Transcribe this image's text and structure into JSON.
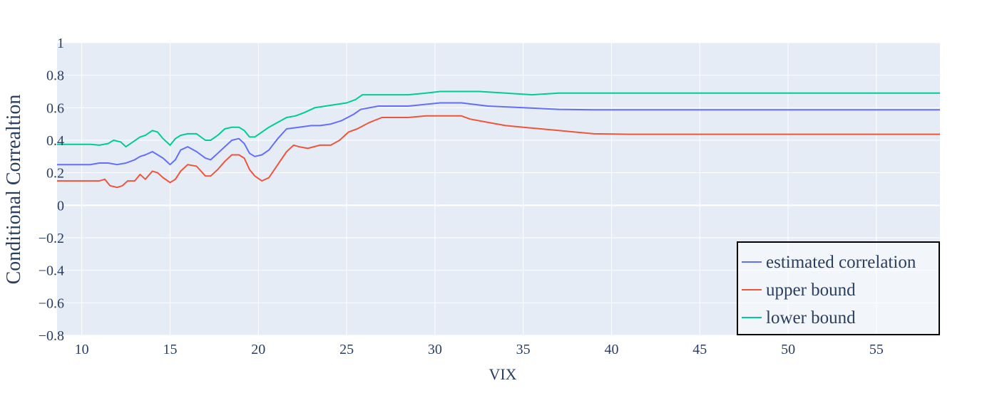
{
  "chart_data": {
    "type": "line",
    "xlabel": "VIX",
    "ylabel": "Conditional Correaltion",
    "xlim": [
      8.6,
      58.6
    ],
    "ylim": [
      -0.8,
      1.0
    ],
    "xticks": [
      10,
      15,
      20,
      25,
      30,
      35,
      40,
      45,
      50,
      55
    ],
    "yticks": [
      -0.8,
      -0.6,
      -0.4,
      -0.2,
      0,
      0.2,
      0.4,
      0.6,
      0.8,
      1
    ],
    "ytick_labels": [
      "−0.8",
      "−0.6",
      "−0.4",
      "−0.2",
      "0",
      "0.2",
      "0.4",
      "0.6",
      "0.8",
      "1"
    ],
    "xtick_labels": [
      "10",
      "15",
      "20",
      "25",
      "30",
      "35",
      "40",
      "45",
      "50",
      "55"
    ],
    "grid": true,
    "legend_position": "bottom-right",
    "colors": {
      "estimated correlation": "#636efa",
      "upper bound": "#EF553B",
      "lower bound": "#00cc96",
      "plot_bg": "#e5ecf6",
      "grid": "#ffffff",
      "text": "#2a3f5f"
    },
    "series": [
      {
        "name": "estimated correlation",
        "color": "#636efa",
        "x": [
          8.6,
          10.5,
          11,
          11.5,
          12,
          12.5,
          13,
          13.3,
          13.6,
          14,
          14.3,
          14.6,
          15,
          15.3,
          15.6,
          16,
          16.5,
          17,
          17.3,
          17.7,
          18.1,
          18.5,
          18.9,
          19.2,
          19.5,
          19.8,
          20.2,
          20.6,
          21.1,
          21.6,
          22.3,
          23,
          23.5,
          24.1,
          24.7,
          25.4,
          25.8,
          26.8,
          28.5,
          30.3,
          31.5,
          33,
          35,
          37,
          39,
          41,
          45,
          50,
          58.6
        ],
        "y": [
          0.25,
          0.25,
          0.26,
          0.26,
          0.25,
          0.26,
          0.28,
          0.3,
          0.31,
          0.33,
          0.31,
          0.29,
          0.25,
          0.28,
          0.34,
          0.36,
          0.33,
          0.29,
          0.28,
          0.32,
          0.36,
          0.4,
          0.41,
          0.38,
          0.32,
          0.3,
          0.31,
          0.34,
          0.41,
          0.47,
          0.48,
          0.49,
          0.49,
          0.5,
          0.52,
          0.56,
          0.59,
          0.61,
          0.61,
          0.63,
          0.63,
          0.61,
          0.6,
          0.59,
          0.587,
          0.587,
          0.587,
          0.587,
          0.587
        ]
      },
      {
        "name": "upper bound",
        "color": "#EF553B",
        "x": [
          8.6,
          10.5,
          11,
          11.3,
          11.6,
          12,
          12.3,
          12.6,
          13,
          13.3,
          13.6,
          14,
          14.3,
          14.6,
          15,
          15.3,
          15.6,
          16,
          16.5,
          17,
          17.3,
          17.7,
          18.1,
          18.5,
          18.9,
          19.2,
          19.5,
          19.8,
          20.2,
          20.6,
          21.1,
          21.6,
          22,
          22.3,
          22.8,
          23.5,
          24.1,
          24.6,
          25.1,
          25.6,
          26.3,
          27,
          28.5,
          29.5,
          30.5,
          31.5,
          32,
          33,
          34,
          35,
          36,
          37,
          38,
          39,
          41,
          45,
          50,
          58.6
        ],
        "y": [
          0.15,
          0.15,
          0.15,
          0.16,
          0.12,
          0.11,
          0.12,
          0.15,
          0.15,
          0.19,
          0.16,
          0.21,
          0.2,
          0.17,
          0.14,
          0.16,
          0.21,
          0.25,
          0.24,
          0.18,
          0.18,
          0.22,
          0.27,
          0.31,
          0.31,
          0.29,
          0.22,
          0.18,
          0.15,
          0.17,
          0.25,
          0.33,
          0.37,
          0.36,
          0.35,
          0.37,
          0.37,
          0.4,
          0.45,
          0.47,
          0.51,
          0.54,
          0.54,
          0.55,
          0.55,
          0.55,
          0.53,
          0.51,
          0.49,
          0.48,
          0.47,
          0.46,
          0.45,
          0.44,
          0.437,
          0.437,
          0.437,
          0.437
        ]
      },
      {
        "name": "lower bound",
        "color": "#00cc96",
        "x": [
          8.6,
          10.5,
          11,
          11.5,
          11.8,
          12.2,
          12.5,
          12.9,
          13.3,
          13.6,
          14,
          14.3,
          14.6,
          15,
          15.3,
          15.6,
          16,
          16.5,
          17,
          17.3,
          17.7,
          18.1,
          18.5,
          18.9,
          19.2,
          19.5,
          19.8,
          20.2,
          20.6,
          21.1,
          21.6,
          22.1,
          22.6,
          23.2,
          23.8,
          24.4,
          25,
          25.5,
          25.9,
          26.8,
          28.5,
          29.5,
          30.3,
          31.3,
          32.5,
          34,
          35.5,
          37,
          39,
          41,
          45,
          50,
          58.6
        ],
        "y": [
          0.375,
          0.375,
          0.37,
          0.38,
          0.4,
          0.39,
          0.36,
          0.39,
          0.42,
          0.43,
          0.46,
          0.45,
          0.41,
          0.37,
          0.41,
          0.43,
          0.44,
          0.44,
          0.4,
          0.4,
          0.43,
          0.47,
          0.48,
          0.48,
          0.46,
          0.42,
          0.42,
          0.45,
          0.48,
          0.51,
          0.54,
          0.55,
          0.57,
          0.6,
          0.61,
          0.62,
          0.63,
          0.65,
          0.68,
          0.68,
          0.68,
          0.69,
          0.7,
          0.7,
          0.7,
          0.69,
          0.68,
          0.69,
          0.69,
          0.69,
          0.69,
          0.69,
          0.69
        ]
      }
    ]
  }
}
